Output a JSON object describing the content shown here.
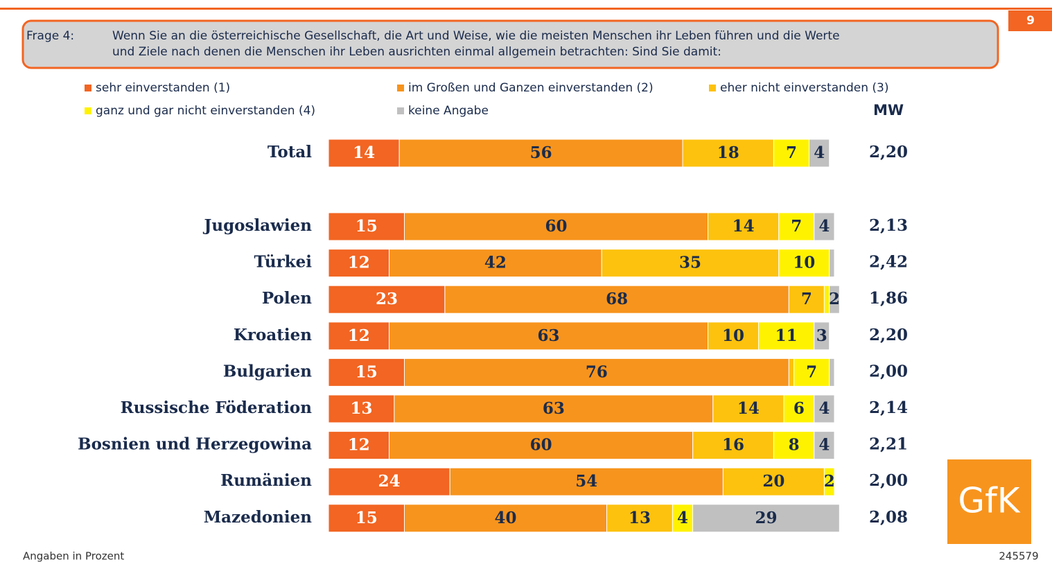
{
  "page_number": "9",
  "question": {
    "label": "Frage 4:",
    "lines": [
      "Wenn Sie an die österreichische Gesellschaft, die Art und Weise, wie die meisten Menschen ihr Leben führen und die Werte",
      "und Ziele nach denen die Menschen ihr Leben ausrichten einmal allgemein betrachten: Sind Sie damit:"
    ]
  },
  "chart_data": {
    "type": "stacked_bar_horizontal",
    "xlim": [
      0,
      100
    ],
    "categories": [
      "Total",
      "Jugoslawien",
      "Türkei",
      "Polen",
      "Kroatien",
      "Bulgarien",
      "Russische Föderation",
      "Bosnien und Herzegowina",
      "Rumänien",
      "Mazedonien"
    ],
    "series": [
      {
        "name": "sehr einverstanden (1)",
        "color": "#f26522",
        "values": [
          14,
          15,
          12,
          23,
          12,
          15,
          13,
          12,
          24,
          15
        ]
      },
      {
        "name": "im Großen und Ganzen einverstanden (2)",
        "color": "#f7941d",
        "values": [
          56,
          60,
          42,
          68,
          63,
          76,
          63,
          60,
          54,
          40
        ]
      },
      {
        "name": "eher nicht einverstanden (3)",
        "color": "#fdc20e",
        "values": [
          18,
          14,
          35,
          7,
          10,
          1,
          14,
          16,
          20,
          13
        ]
      },
      {
        "name": "ganz und gar nicht einverstanden (4)",
        "color": "#fff200",
        "values": [
          7,
          7,
          10,
          1,
          11,
          7,
          6,
          8,
          2,
          4
        ]
      },
      {
        "name": "keine Angabe",
        "color": "#c0c0c0",
        "values": [
          4,
          4,
          1,
          2,
          3,
          1,
          4,
          4,
          0,
          29
        ]
      }
    ],
    "mw_header": "MW",
    "mw": [
      "2,20",
      "2,13",
      "2,42",
      "1,86",
      "2,20",
      "2,00",
      "2,14",
      "2,21",
      "2,00",
      "2,08"
    ]
  },
  "footer": {
    "note": "Angaben in Prozent",
    "code": "245579"
  },
  "logo": "GfK"
}
